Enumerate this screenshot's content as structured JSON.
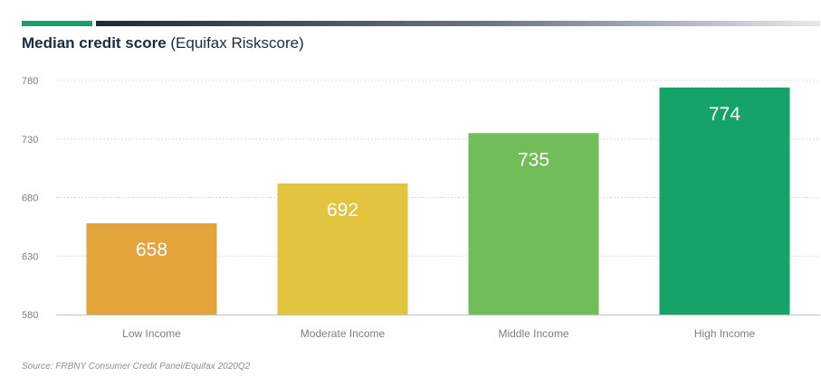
{
  "header": {
    "title_bold": "Median credit score",
    "title_rest": " (Equifax Riskscore)"
  },
  "source": "Source: FRBNY Consumer Credit Panel/Equifax 2020Q2",
  "colors": {
    "accent_green": "#17a06b",
    "grid": "#d9dde1",
    "axis_text": "#7a8088",
    "value_label": "#ffffff"
  },
  "chart_data": {
    "type": "bar",
    "categories": [
      "Low Income",
      "Moderate Income",
      "Middle Income",
      "High Income"
    ],
    "values": [
      658,
      692,
      735,
      774
    ],
    "colors": [
      "#e3a43c",
      "#e2c43e",
      "#70bd5a",
      "#16a36a"
    ],
    "ylim": [
      580,
      780
    ],
    "yticks": [
      580,
      630,
      680,
      730,
      780
    ],
    "grid": true,
    "title": "Median credit score (Equifax Riskscore)",
    "xlabel": "",
    "ylabel": ""
  }
}
